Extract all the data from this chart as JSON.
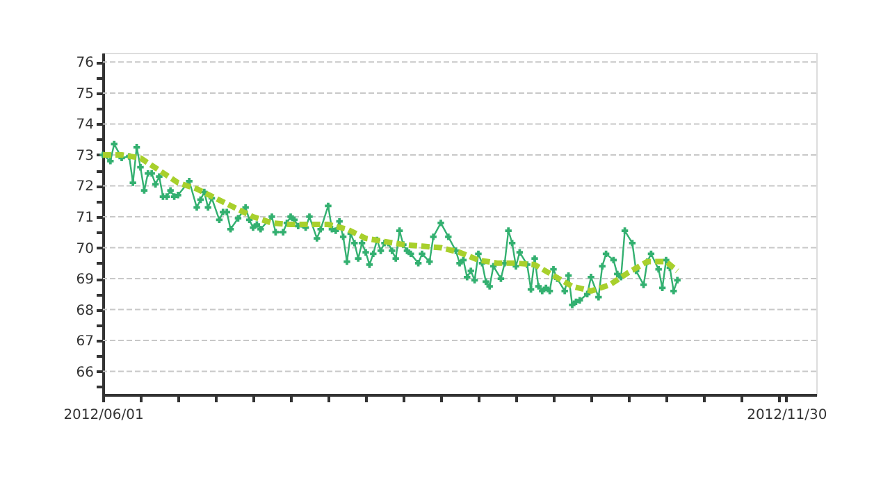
{
  "chart_data": {
    "type": "line",
    "xlim": [
      "2012-06-01",
      "2012-12-08"
    ],
    "xticks": [
      {
        "value": "2012-06-01",
        "label": "2012/06/01"
      },
      {
        "value": "2012-06-11",
        "label": null
      },
      {
        "value": "2012-06-21",
        "label": null
      },
      {
        "value": "2012-07-01",
        "label": null
      },
      {
        "value": "2012-07-11",
        "label": null
      },
      {
        "value": "2012-07-21",
        "label": null
      },
      {
        "value": "2012-07-31",
        "label": null
      },
      {
        "value": "2012-08-10",
        "label": null
      },
      {
        "value": "2012-08-20",
        "label": null
      },
      {
        "value": "2012-08-30",
        "label": null
      },
      {
        "value": "2012-09-09",
        "label": null
      },
      {
        "value": "2012-09-19",
        "label": null
      },
      {
        "value": "2012-09-29",
        "label": null
      },
      {
        "value": "2012-10-09",
        "label": null
      },
      {
        "value": "2012-10-19",
        "label": null
      },
      {
        "value": "2012-10-29",
        "label": null
      },
      {
        "value": "2012-11-08",
        "label": null
      },
      {
        "value": "2012-11-18",
        "label": null
      },
      {
        "value": "2012-11-28",
        "label": null
      },
      {
        "value": "2012-11-30",
        "label": "2012/11/30"
      }
    ],
    "ylim": [
      65.25,
      76.3
    ],
    "yticks": [
      {
        "value": 65.5,
        "label": null
      },
      66,
      {
        "value": 66.5,
        "label": null
      },
      67,
      {
        "value": 67.5,
        "label": null
      },
      68,
      {
        "value": 68.5,
        "label": null
      },
      69,
      {
        "value": 69.5,
        "label": null
      },
      70,
      {
        "value": 70.5,
        "label": null
      },
      71,
      {
        "value": 71.5,
        "label": null
      },
      72,
      {
        "value": 72.5,
        "label": null
      },
      73,
      {
        "value": 73.5,
        "label": null
      },
      74,
      {
        "value": 74.5,
        "label": null
      },
      75,
      {
        "value": 75.5,
        "label": null
      },
      76
    ],
    "grid": "y",
    "series": [
      {
        "type": "line",
        "color": "#33b070",
        "marker": "cross",
        "line_style": "solid",
        "x": [
          "2012-06-01",
          "2012-06-03",
          "2012-06-04",
          "2012-06-06",
          "2012-06-08",
          "2012-06-09",
          "2012-06-10",
          "2012-06-11",
          "2012-06-12",
          "2012-06-13",
          "2012-06-14",
          "2012-06-15",
          "2012-06-16",
          "2012-06-17",
          "2012-06-18",
          "2012-06-19",
          "2012-06-20",
          "2012-06-21",
          "2012-06-24",
          "2012-06-26",
          "2012-06-27",
          "2012-06-28",
          "2012-06-29",
          "2012-06-30",
          "2012-07-02",
          "2012-07-03",
          "2012-07-04",
          "2012-07-05",
          "2012-07-07",
          "2012-07-09",
          "2012-07-10",
          "2012-07-11",
          "2012-07-12",
          "2012-07-13",
          "2012-07-16",
          "2012-07-17",
          "2012-07-19",
          "2012-07-20",
          "2012-07-21",
          "2012-07-22",
          "2012-07-23",
          "2012-07-25",
          "2012-07-26",
          "2012-07-28",
          "2012-07-29",
          "2012-07-31",
          "2012-08-01",
          "2012-08-02",
          "2012-08-03",
          "2012-08-04",
          "2012-08-05",
          "2012-08-06",
          "2012-08-07",
          "2012-08-08",
          "2012-08-09",
          "2012-08-10",
          "2012-08-11",
          "2012-08-12",
          "2012-08-13",
          "2012-08-14",
          "2012-08-15",
          "2012-08-16",
          "2012-08-17",
          "2012-08-18",
          "2012-08-19",
          "2012-08-20",
          "2012-08-21",
          "2012-08-22",
          "2012-08-24",
          "2012-08-25",
          "2012-08-27",
          "2012-08-28",
          "2012-08-30",
          "2012-09-01",
          "2012-09-03",
          "2012-09-04",
          "2012-09-05",
          "2012-09-06",
          "2012-09-07",
          "2012-09-08",
          "2012-09-09",
          "2012-09-10",
          "2012-09-11",
          "2012-09-12",
          "2012-09-13",
          "2012-09-15",
          "2012-09-16",
          "2012-09-17",
          "2012-09-18",
          "2012-09-19",
          "2012-09-20",
          "2012-09-22",
          "2012-09-23",
          "2012-09-24",
          "2012-09-25",
          "2012-09-26",
          "2012-09-27",
          "2012-09-28",
          "2012-09-29",
          "2012-09-30",
          "2012-10-02",
          "2012-10-03",
          "2012-10-04",
          "2012-10-05",
          "2012-10-06",
          "2012-10-08",
          "2012-10-09",
          "2012-10-11",
          "2012-10-12",
          "2012-10-13",
          "2012-10-15",
          "2012-10-16",
          "2012-10-17",
          "2012-10-18",
          "2012-10-20",
          "2012-10-21",
          "2012-10-23",
          "2012-10-24",
          "2012-10-25",
          "2012-10-27",
          "2012-10-28",
          "2012-10-29",
          "2012-10-30",
          "2012-10-31",
          "2012-11-01"
        ],
        "values": [
          73.0,
          72.8,
          73.35,
          72.9,
          72.95,
          72.1,
          73.25,
          72.6,
          71.85,
          72.4,
          72.4,
          72.05,
          72.3,
          71.65,
          71.65,
          71.85,
          71.65,
          71.7,
          72.15,
          71.3,
          71.55,
          71.8,
          71.3,
          71.6,
          70.9,
          71.15,
          71.15,
          70.6,
          70.95,
          71.3,
          70.9,
          70.65,
          70.75,
          70.6,
          71.0,
          70.5,
          70.5,
          70.8,
          71.0,
          70.9,
          70.7,
          70.65,
          71.0,
          70.3,
          70.6,
          71.35,
          70.6,
          70.55,
          70.85,
          70.35,
          69.55,
          70.45,
          70.15,
          69.65,
          70.15,
          69.85,
          69.45,
          69.8,
          70.25,
          69.9,
          70.15,
          70.15,
          69.9,
          69.65,
          70.55,
          70.1,
          69.9,
          69.8,
          69.5,
          69.8,
          69.55,
          70.35,
          70.8,
          70.35,
          69.9,
          69.5,
          69.6,
          69.05,
          69.25,
          68.95,
          69.8,
          69.5,
          68.9,
          68.75,
          69.4,
          69.0,
          69.5,
          70.55,
          70.15,
          69.4,
          69.85,
          69.45,
          68.65,
          69.65,
          68.75,
          68.6,
          68.7,
          68.6,
          69.3,
          69.0,
          68.6,
          69.1,
          68.15,
          68.25,
          68.3,
          68.5,
          69.05,
          68.4,
          69.4,
          69.8,
          69.6,
          69.15,
          69.05,
          70.55,
          70.15,
          69.25,
          68.8,
          69.55,
          69.8,
          69.3,
          68.7,
          69.6,
          69.35,
          68.6,
          68.95
        ]
      },
      {
        "type": "line",
        "color": "#a8d02c",
        "marker": "none",
        "line_style": "dashed",
        "x": [
          "2012-06-01",
          "2012-06-06",
          "2012-06-11",
          "2012-06-16",
          "2012-06-21",
          "2012-06-26",
          "2012-07-01",
          "2012-07-06",
          "2012-07-11",
          "2012-07-16",
          "2012-07-21",
          "2012-07-26",
          "2012-07-31",
          "2012-08-05",
          "2012-08-10",
          "2012-08-15",
          "2012-08-20",
          "2012-08-25",
          "2012-08-30",
          "2012-09-04",
          "2012-09-09",
          "2012-09-14",
          "2012-09-19",
          "2012-09-24",
          "2012-09-29",
          "2012-10-04",
          "2012-10-09",
          "2012-10-14",
          "2012-10-19",
          "2012-10-24",
          "2012-10-29",
          "2012-11-01"
        ],
        "values": [
          73.0,
          73.0,
          72.9,
          72.5,
          72.1,
          71.9,
          71.6,
          71.3,
          71.0,
          70.8,
          70.75,
          70.75,
          70.75,
          70.6,
          70.3,
          70.2,
          70.1,
          70.05,
          70.0,
          69.85,
          69.6,
          69.5,
          69.5,
          69.45,
          69.1,
          68.75,
          68.6,
          68.8,
          69.2,
          69.55,
          69.55,
          69.25
        ]
      }
    ]
  }
}
